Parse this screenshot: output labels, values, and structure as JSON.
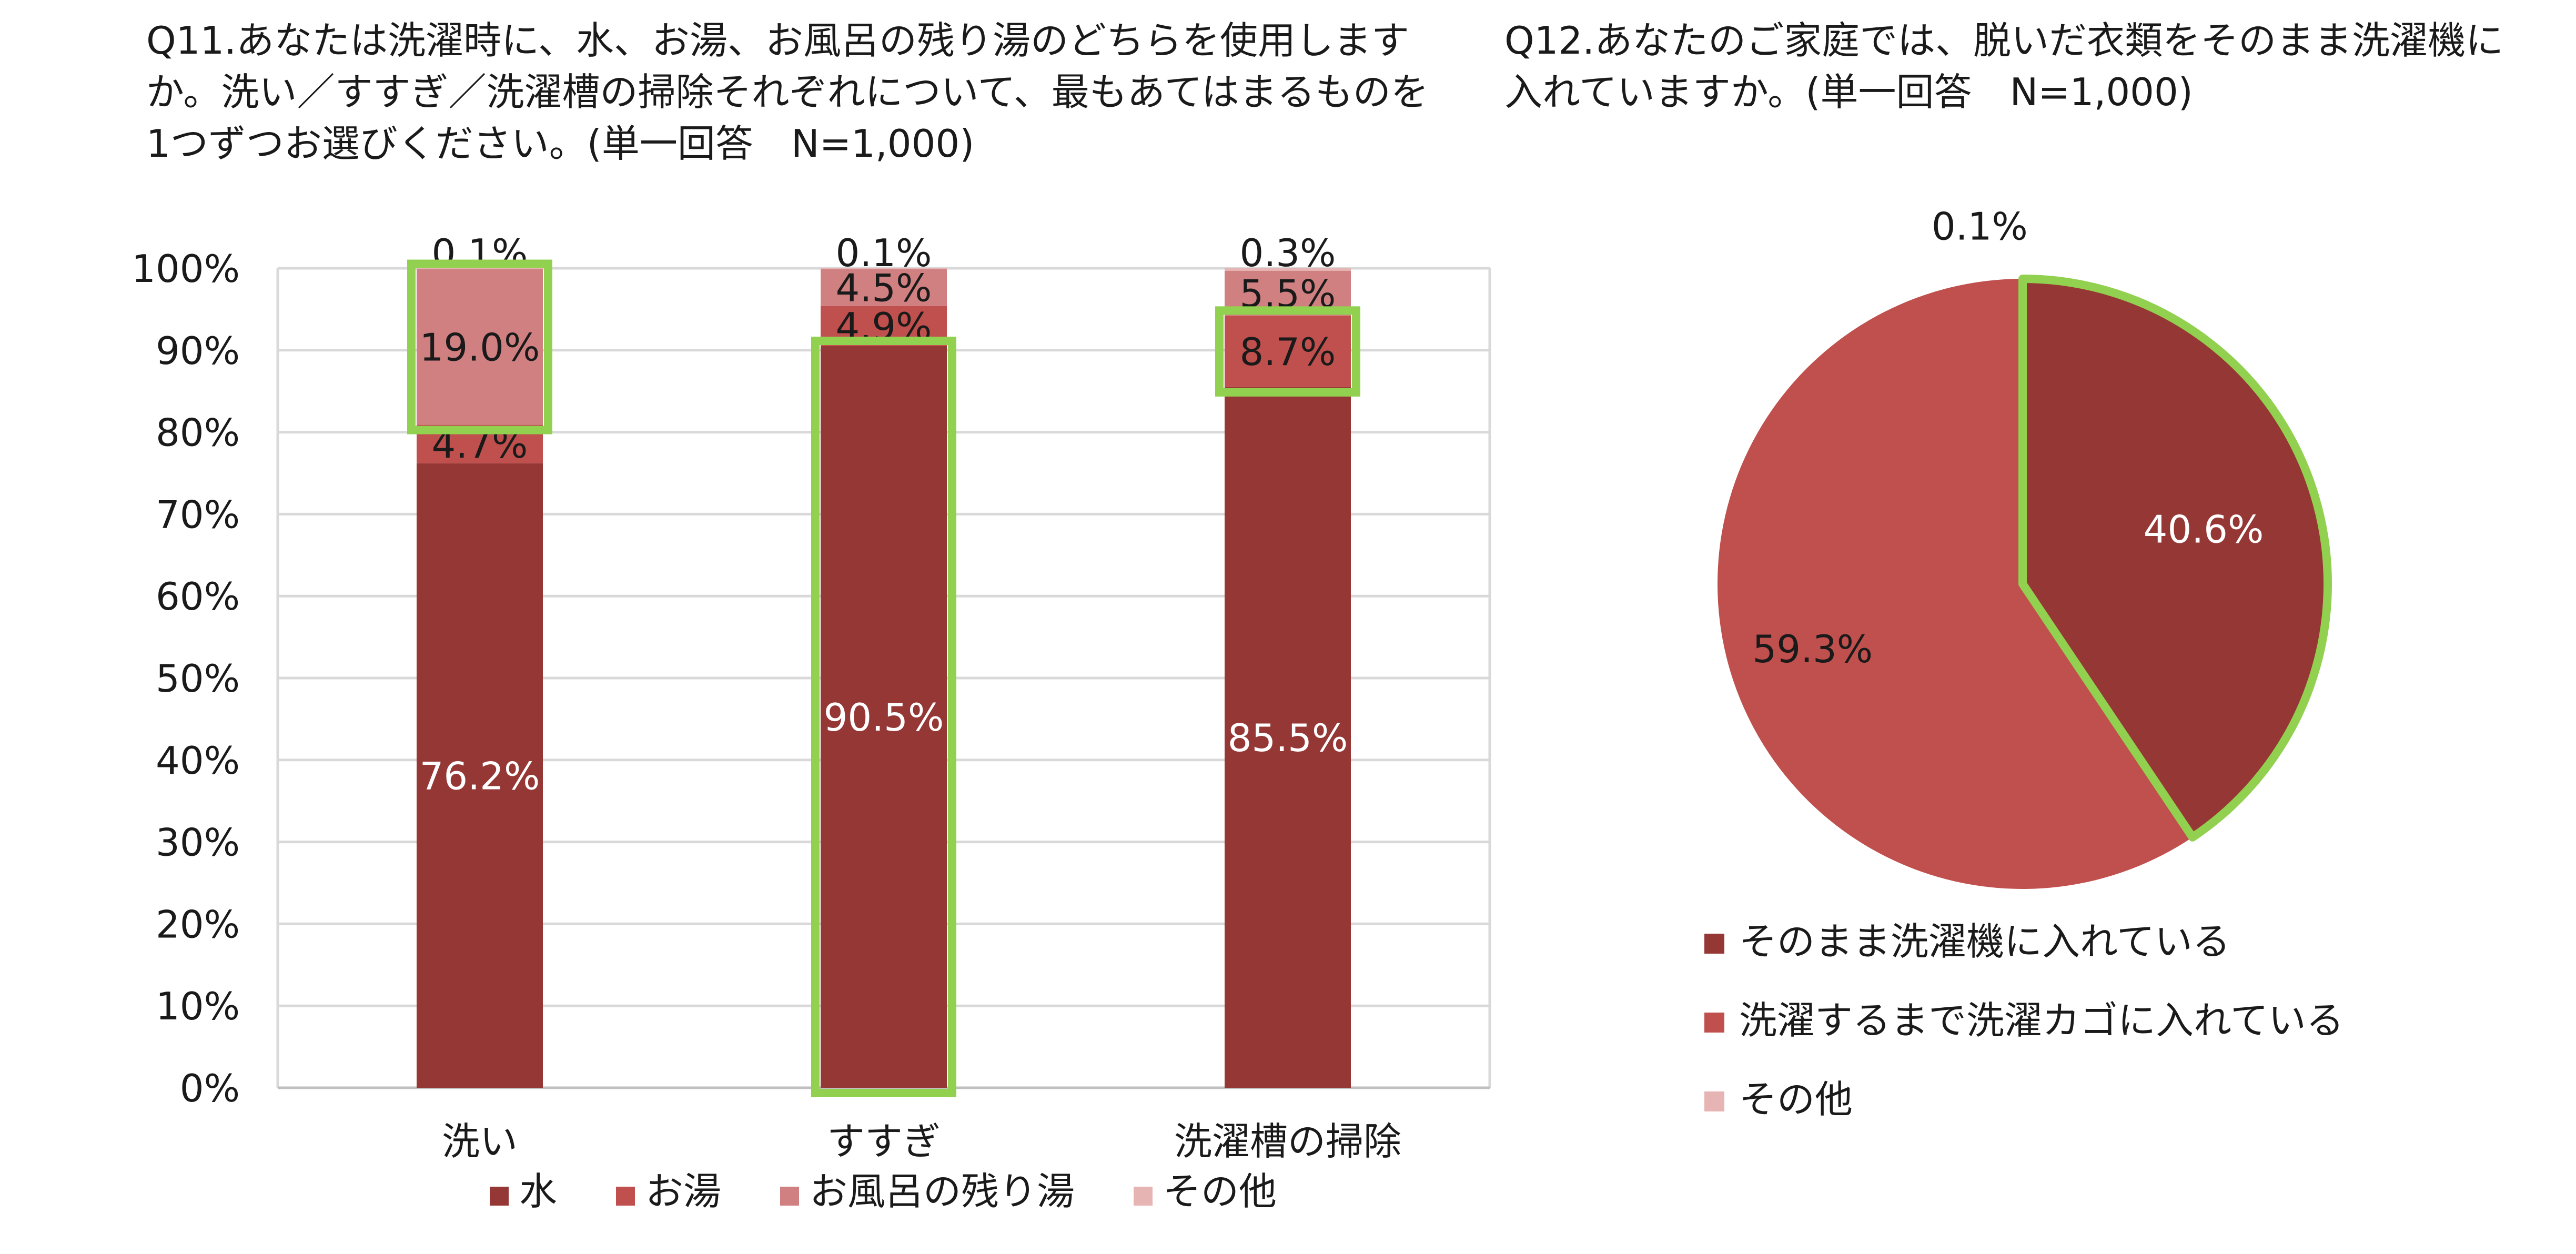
{
  "q11": {
    "title": "Q11.あなたは洗濯時に、水、お湯、お風呂の残り湯のどちらを使用しますか。洗い／すすぎ／洗濯槽の掃除それぞれについて、最もあてはまるものを1つずつお選びください。(単一回答　N=1,000)"
  },
  "q12": {
    "title": "Q12.あなたのご家庭では、脱いだ衣類をそのまま洗濯機に入れていますか。(単一回答　N=1,000)"
  },
  "chart_data": [
    {
      "type": "bar",
      "stacked": true,
      "categories": [
        "洗い",
        "すすぎ",
        "洗濯槽の掃除"
      ],
      "series": [
        {
          "name": "水",
          "values": [
            76.2,
            90.5,
            85.5
          ],
          "labels": [
            "76.2%",
            "90.5%",
            "85.5%"
          ],
          "color": "#953735"
        },
        {
          "name": "お湯",
          "values": [
            4.7,
            4.9,
            8.7
          ],
          "labels": [
            "4.7%",
            "4.9%",
            "8.7%"
          ],
          "color": "#c0504d"
        },
        {
          "name": "お風呂の残り湯",
          "values": [
            19.0,
            4.5,
            5.5
          ],
          "labels": [
            "19.0%",
            "4.5%",
            "5.5%"
          ],
          "color": "#d08080"
        },
        {
          "name": "その他",
          "values": [
            0.1,
            0.1,
            0.3
          ],
          "labels": [
            "0.1%",
            "0.1%",
            "0.3%"
          ],
          "color": "#e6b4b3"
        }
      ],
      "ylim": [
        0,
        100
      ],
      "y_ticks": [
        "0%",
        "10%",
        "20%",
        "30%",
        "40%",
        "50%",
        "60%",
        "70%",
        "80%",
        "90%",
        "100%"
      ],
      "grid": true,
      "legend": "bottom",
      "highlights": [
        {
          "category": "洗い",
          "series": "お風呂の残り湯"
        },
        {
          "category": "すすぎ",
          "series": "水"
        },
        {
          "category": "洗濯槽の掃除",
          "series": "お湯"
        }
      ],
      "highlight_color": "#92d050"
    },
    {
      "type": "pie",
      "slices": [
        {
          "name": "そのまま洗濯機に入れている",
          "value": 40.6,
          "label": "40.6%",
          "color": "#953735"
        },
        {
          "name": "洗濯するまで洗濯カゴに入れている",
          "value": 59.3,
          "label": "59.3%",
          "color": "#c0504d"
        },
        {
          "name": "その他",
          "value": 0.1,
          "label": "0.1%",
          "color": "#e6b4b3"
        }
      ],
      "legend": "bottom",
      "highlight": "そのまま洗濯機に入れている",
      "highlight_color": "#92d050"
    }
  ]
}
